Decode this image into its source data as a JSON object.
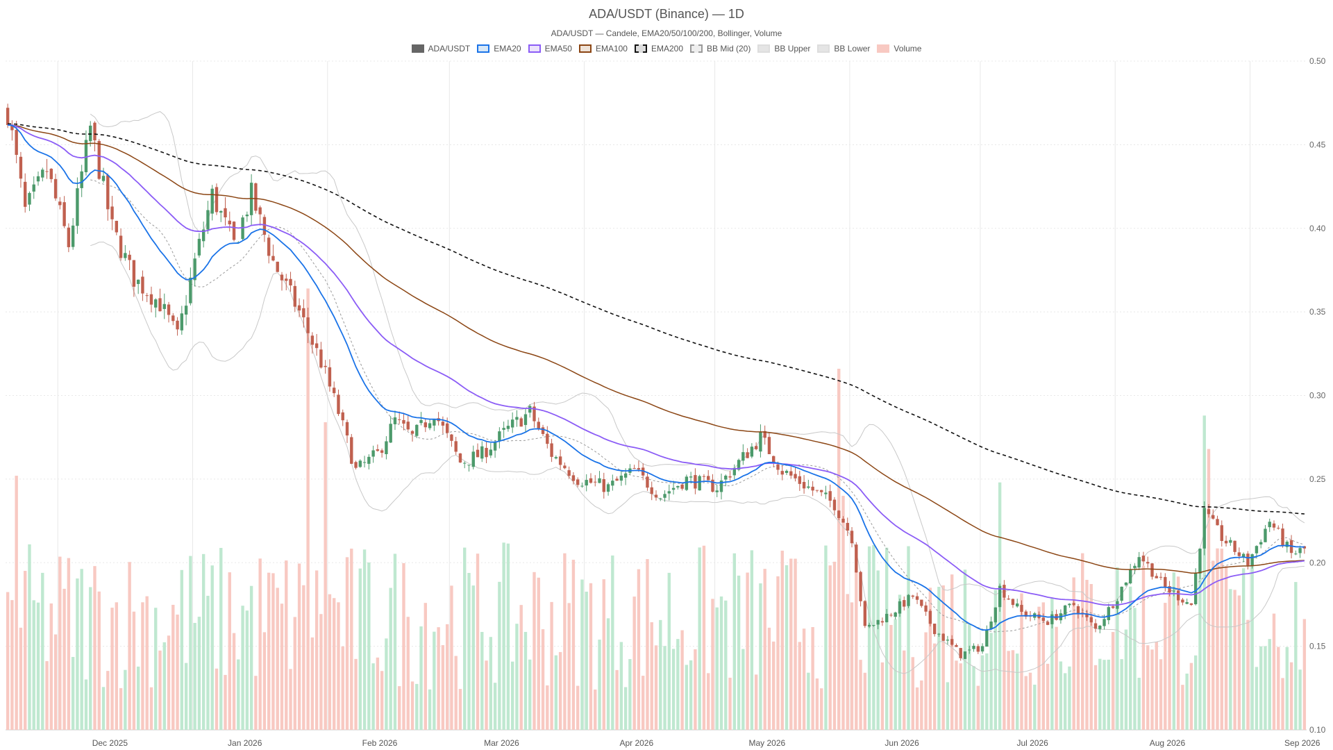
{
  "chart_data": {
    "type": "candlestick",
    "title": "ADA/USDT (Binance) — 1D",
    "subtitle": "ADA/USDT — Candele, EMA20/50/100/200, Bollinger, Volume",
    "legend": [
      {
        "name": "ADA/USDT",
        "fill": "#666666",
        "stroke": "#666666",
        "dashed": false
      },
      {
        "name": "EMA20",
        "fill": "#d7e7f7",
        "stroke": "#1a73e8",
        "dashed": false
      },
      {
        "name": "EMA50",
        "fill": "#ece3fb",
        "stroke": "#8b5cf6",
        "dashed": false
      },
      {
        "name": "EMA100",
        "fill": "#efe3d8",
        "stroke": "#8b4513",
        "dashed": false
      },
      {
        "name": "EMA200",
        "fill": "#dddddd",
        "stroke": "#111111",
        "dashed": true
      },
      {
        "name": "BB Mid (20)",
        "fill": "#eeeeee",
        "stroke": "#999999",
        "dashed": true
      },
      {
        "name": "BB Upper",
        "fill": "#e5e5e5",
        "stroke": "#dddddd",
        "dashed": false
      },
      {
        "name": "BB Lower",
        "fill": "#e5e5e5",
        "stroke": "#dddddd",
        "dashed": false
      },
      {
        "name": "Volume",
        "fill": "#f8c9c2",
        "stroke": "#f8c9c2",
        "dashed": false
      }
    ],
    "y_axis": {
      "position": "right",
      "ylim": [
        0.1,
        0.5
      ],
      "ticks": [
        "0.10",
        "0.15",
        "0.20",
        "0.25",
        "0.30",
        "0.35",
        "0.40",
        "0.45",
        "0.50"
      ]
    },
    "x_axis": {
      "ticks": [
        "Dec 2025",
        "Jan 2026",
        "Feb 2026",
        "Mar 2026",
        "Apr 2026",
        "May 2026",
        "Jun 2026",
        "Jul 2026",
        "Aug 2026",
        "Sep 2026"
      ],
      "first_date": "2025-11-19",
      "last_date": "2026-09-13"
    },
    "grid": true,
    "colors": {
      "up": "#4c9a6b",
      "down": "#c0604f",
      "vol_up": "#bfe8d0",
      "vol_down": "#f8c9c2",
      "ema20": "#1a73e8",
      "ema50": "#8b5cf6",
      "ema100": "#8b4513",
      "ema200": "#111111",
      "bb_mid": "#999999",
      "bb_band": "#c8c8c8",
      "grid": "#e8e8e8"
    },
    "close_anchors": [
      [
        "2025-11-19",
        0.47
      ],
      [
        "2025-11-23",
        0.41
      ],
      [
        "2025-11-28",
        0.435
      ],
      [
        "2025-12-03",
        0.39
      ],
      [
        "2025-12-08",
        0.46
      ],
      [
        "2025-12-13",
        0.4
      ],
      [
        "2025-12-18",
        0.37
      ],
      [
        "2025-12-24",
        0.355
      ],
      [
        "2025-12-28",
        0.335
      ],
      [
        "2026-01-01",
        0.38
      ],
      [
        "2026-01-05",
        0.42
      ],
      [
        "2026-01-10",
        0.39
      ],
      [
        "2026-01-14",
        0.42
      ],
      [
        "2026-01-19",
        0.38
      ],
      [
        "2026-01-25",
        0.35
      ],
      [
        "2026-01-30",
        0.32
      ],
      [
        "2026-02-03",
        0.29
      ],
      [
        "2026-02-07",
        0.255
      ],
      [
        "2026-02-12",
        0.265
      ],
      [
        "2026-02-16",
        0.285
      ],
      [
        "2026-02-20",
        0.275
      ],
      [
        "2026-02-25",
        0.29
      ],
      [
        "2026-03-03",
        0.26
      ],
      [
        "2026-03-08",
        0.265
      ],
      [
        "2026-03-14",
        0.28
      ],
      [
        "2026-03-19",
        0.29
      ],
      [
        "2026-03-24",
        0.265
      ],
      [
        "2026-03-30",
        0.25
      ],
      [
        "2026-04-06",
        0.245
      ],
      [
        "2026-04-12",
        0.255
      ],
      [
        "2026-04-18",
        0.24
      ],
      [
        "2026-04-24",
        0.25
      ],
      [
        "2026-05-01",
        0.245
      ],
      [
        "2026-05-06",
        0.26
      ],
      [
        "2026-05-11",
        0.275
      ],
      [
        "2026-05-16",
        0.255
      ],
      [
        "2026-05-22",
        0.245
      ],
      [
        "2026-05-28",
        0.235
      ],
      [
        "2026-06-01",
        0.215
      ],
      [
        "2026-06-04",
        0.16
      ],
      [
        "2026-06-10",
        0.17
      ],
      [
        "2026-06-15",
        0.18
      ],
      [
        "2026-06-20",
        0.16
      ],
      [
        "2026-06-26",
        0.145
      ],
      [
        "2026-07-01",
        0.15
      ],
      [
        "2026-07-05",
        0.185
      ],
      [
        "2026-07-10",
        0.17
      ],
      [
        "2026-07-16",
        0.165
      ],
      [
        "2026-07-22",
        0.175
      ],
      [
        "2026-07-27",
        0.16
      ],
      [
        "2026-08-01",
        0.18
      ],
      [
        "2026-08-06",
        0.205
      ],
      [
        "2026-08-12",
        0.185
      ],
      [
        "2026-08-18",
        0.175
      ],
      [
        "2026-08-21",
        0.23
      ],
      [
        "2026-08-25",
        0.215
      ],
      [
        "2026-08-31",
        0.2
      ],
      [
        "2026-09-05",
        0.225
      ],
      [
        "2026-09-10",
        0.205
      ],
      [
        "2026-09-13",
        0.208
      ]
    ],
    "volume_spikes": [
      [
        "2026-01-27",
        0.66
      ],
      [
        "2026-01-31",
        0.46
      ],
      [
        "2026-05-29",
        0.54
      ],
      [
        "2026-05-30",
        0.35
      ],
      [
        "2026-07-05",
        0.37
      ],
      [
        "2026-08-21",
        0.47
      ],
      [
        "2026-08-22",
        0.42
      ],
      [
        "2025-11-21",
        0.38
      ]
    ]
  }
}
